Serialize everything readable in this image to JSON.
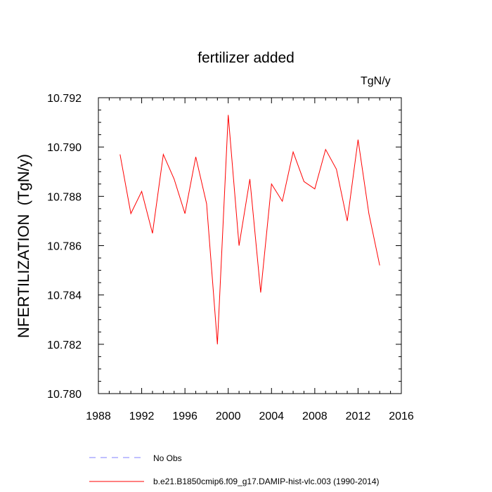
{
  "chart_data": {
    "type": "line",
    "title": "fertilizer added",
    "units": "TgN/y",
    "ylabel": "NFERTILIZATION  (TgN/y)",
    "xlim": [
      1988,
      2016
    ],
    "ylim": [
      10.78,
      10.792
    ],
    "xticks": [
      "1988",
      "1992",
      "1996",
      "2000",
      "2004",
      "2008",
      "2012",
      "2016"
    ],
    "yticks": [
      "10.780",
      "10.782",
      "10.784",
      "10.786",
      "10.788",
      "10.790",
      "10.792"
    ],
    "series": [
      {
        "name": "b.e21.B1850cmip6.f09_g17.DAMIP-hist-vlc.003 (1990-2014)",
        "color": "#ff0000",
        "x": [
          1990,
          1991,
          1992,
          1993,
          1994,
          1995,
          1996,
          1997,
          1998,
          1999,
          2000,
          2001,
          2002,
          2003,
          2004,
          2005,
          2006,
          2007,
          2008,
          2009,
          2010,
          2011,
          2012,
          2013,
          2014
        ],
        "y": [
          10.7897,
          10.7873,
          10.7882,
          10.7865,
          10.7897,
          10.7887,
          10.7873,
          10.7896,
          10.7877,
          10.782,
          10.7913,
          10.786,
          10.7887,
          10.7841,
          10.7885,
          10.7878,
          10.7898,
          10.7886,
          10.7883,
          10.7899,
          10.7891,
          10.787,
          10.7903,
          10.7873,
          10.7852
        ]
      },
      {
        "name": "No Obs",
        "color": "#8080ff",
        "dashed": true,
        "x": [],
        "y": []
      }
    ],
    "legend": [
      {
        "label": "No Obs",
        "color": "#8080ff",
        "dashed": true
      },
      {
        "label": "b.e21.B1850cmip6.f09_g17.DAMIP-hist-vlc.003 (1990-2014)",
        "color": "#ff0000",
        "dashed": false
      }
    ],
    "legend_position": "bottom"
  }
}
